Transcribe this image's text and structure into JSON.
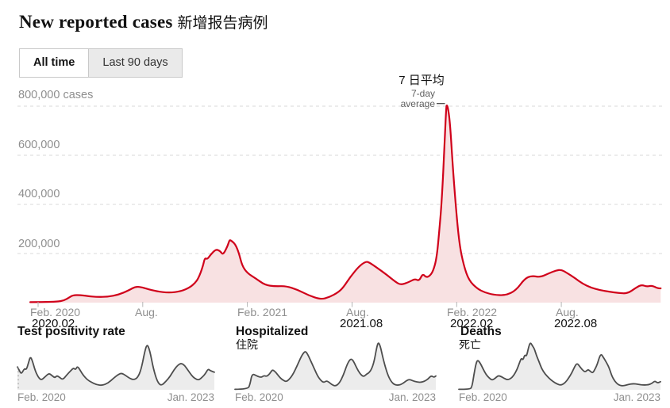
{
  "header": {
    "title_en": "New reported cases",
    "title_zh": "新增报告病例",
    "tabs": [
      {
        "label": "All time",
        "active": true
      },
      {
        "label": "Last 90 days",
        "active": false
      }
    ]
  },
  "annotation": {
    "zh": "7 日平均",
    "en_line1": "7-day",
    "en_line2": "average"
  },
  "colors": {
    "line": "#d0021b",
    "fill": "#f8e1e2",
    "grid": "#dadada",
    "tick": "#b6b6b6",
    "axis_text": "#8f8f8f",
    "dark_text": "#121212",
    "small_line": "#4d4d4d",
    "small_fill": "#ececec"
  },
  "chart_data": [
    {
      "type": "area",
      "name": "new-reported-cases",
      "title": "New reported cases 新增报告病例",
      "series_name": "7-day average",
      "y_unit": "cases",
      "ylim": [
        0,
        850000
      ],
      "grid": "horizontal dashed",
      "legend": "none",
      "y_ticks": [
        {
          "value": 800000,
          "label": "800,000 cases"
        },
        {
          "value": 600000,
          "label": "600,000"
        },
        {
          "value": 400000,
          "label": "400,000"
        },
        {
          "value": 200000,
          "label": "200,000"
        }
      ],
      "x_unit": "months since Feb. 2020",
      "x_ticks": [
        {
          "m": 0,
          "label": "Feb. 2020",
          "label2": "2020.02"
        },
        {
          "m": 6,
          "label": "Aug.",
          "label2": ""
        },
        {
          "m": 12,
          "label": "Feb. 2021",
          "label2": ""
        },
        {
          "m": 18,
          "label": "Aug.",
          "label2": "2021.08"
        },
        {
          "m": 24,
          "label": "Feb. 2022",
          "label2": "2022.02"
        },
        {
          "m": 30,
          "label": "Aug.",
          "label2": "2022.08"
        }
      ],
      "series": [
        {
          "name": "7-day average of new reported cases",
          "points": [
            [
              -0.45,
              2000
            ],
            [
              0.3,
              2500
            ],
            [
              1.1,
              4000
            ],
            [
              1.5,
              9000
            ],
            [
              1.8,
              22000
            ],
            [
              2.0,
              30000
            ],
            [
              2.4,
              31000
            ],
            [
              2.8,
              27000
            ],
            [
              3.4,
              23000
            ],
            [
              4.0,
              24000
            ],
            [
              4.6,
              32000
            ],
            [
              5.2,
              50000
            ],
            [
              5.6,
              66000
            ],
            [
              6.0,
              62000
            ],
            [
              6.3,
              55000
            ],
            [
              6.8,
              46000
            ],
            [
              7.5,
              40000
            ],
            [
              8.2,
              46000
            ],
            [
              8.7,
              62000
            ],
            [
              9.0,
              80000
            ],
            [
              9.2,
              100000
            ],
            [
              9.45,
              148000
            ],
            [
              9.56,
              183000
            ],
            [
              9.7,
              176000
            ],
            [
              9.9,
              196000
            ],
            [
              10.2,
              218000
            ],
            [
              10.45,
              210000
            ],
            [
              10.6,
              194000
            ],
            [
              10.85,
              228000
            ],
            [
              10.95,
              250000
            ],
            [
              11.0,
              255000
            ],
            [
              11.1,
              251000
            ],
            [
              11.3,
              238000
            ],
            [
              11.5,
              205000
            ],
            [
              11.7,
              150000
            ],
            [
              12.0,
              120000
            ],
            [
              12.45,
              100000
            ],
            [
              13.0,
              72000
            ],
            [
              13.6,
              66000
            ],
            [
              14.2,
              68000
            ],
            [
              14.9,
              52000
            ],
            [
              15.5,
              30000
            ],
            [
              16.2,
              13000
            ],
            [
              16.7,
              22000
            ],
            [
              17.2,
              42000
            ],
            [
              17.5,
              62000
            ],
            [
              17.9,
              105000
            ],
            [
              18.4,
              148000
            ],
            [
              18.8,
              168000
            ],
            [
              19.0,
              163000
            ],
            [
              19.4,
              144000
            ],
            [
              20.0,
              113000
            ],
            [
              20.5,
              84000
            ],
            [
              20.8,
              72000
            ],
            [
              21.3,
              85000
            ],
            [
              21.6,
              97000
            ],
            [
              21.85,
              88000
            ],
            [
              22.05,
              118000
            ],
            [
              22.25,
              103000
            ],
            [
              22.45,
              108000
            ],
            [
              22.65,
              128000
            ],
            [
              22.85,
              180000
            ],
            [
              23.0,
              290000
            ],
            [
              23.15,
              420000
            ],
            [
              23.3,
              640000
            ],
            [
              23.4,
              796000
            ],
            [
              23.44,
              806000
            ],
            [
              23.52,
              786000
            ],
            [
              23.62,
              730000
            ],
            [
              23.75,
              580000
            ],
            [
              23.95,
              390000
            ],
            [
              24.15,
              240000
            ],
            [
              24.4,
              152000
            ],
            [
              24.7,
              90000
            ],
            [
              25.2,
              56000
            ],
            [
              25.6,
              42000
            ],
            [
              26.1,
              32000
            ],
            [
              26.8,
              29000
            ],
            [
              27.4,
              50000
            ],
            [
              27.9,
              98000
            ],
            [
              28.3,
              110000
            ],
            [
              28.8,
              103000
            ],
            [
              29.3,
              120000
            ],
            [
              29.7,
              131000
            ],
            [
              30.0,
              134000
            ],
            [
              30.3,
              122000
            ],
            [
              30.8,
              99000
            ],
            [
              31.2,
              78000
            ],
            [
              31.7,
              61000
            ],
            [
              32.2,
              51000
            ],
            [
              32.7,
              45000
            ],
            [
              33.3,
              39000
            ],
            [
              33.8,
              37000
            ],
            [
              34.3,
              62000
            ],
            [
              34.6,
              73000
            ],
            [
              34.9,
              65000
            ],
            [
              35.2,
              70000
            ],
            [
              35.5,
              59000
            ],
            [
              35.7,
              58000
            ]
          ]
        }
      ]
    },
    {
      "type": "area",
      "name": "test-positivity-rate",
      "title": "Test positivity rate",
      "subtitle_zh": "",
      "x_labels": [
        "Feb. 2020",
        "Jan. 2023"
      ],
      "y_normalized": true,
      "starts_with_dotted_gap_marker": true,
      "points": [
        [
          0,
          0.48
        ],
        [
          0.01,
          0.4
        ],
        [
          0.02,
          0.33
        ],
        [
          0.035,
          0.45
        ],
        [
          0.045,
          0.42
        ],
        [
          0.055,
          0.55
        ],
        [
          0.065,
          0.7
        ],
        [
          0.075,
          0.62
        ],
        [
          0.09,
          0.4
        ],
        [
          0.105,
          0.27
        ],
        [
          0.12,
          0.2
        ],
        [
          0.14,
          0.27
        ],
        [
          0.16,
          0.35
        ],
        [
          0.175,
          0.3
        ],
        [
          0.19,
          0.25
        ],
        [
          0.2,
          0.3
        ],
        [
          0.215,
          0.26
        ],
        [
          0.23,
          0.21
        ],
        [
          0.25,
          0.31
        ],
        [
          0.27,
          0.4
        ],
        [
          0.285,
          0.46
        ],
        [
          0.295,
          0.42
        ],
        [
          0.305,
          0.5
        ],
        [
          0.32,
          0.4
        ],
        [
          0.335,
          0.3
        ],
        [
          0.355,
          0.21
        ],
        [
          0.375,
          0.16
        ],
        [
          0.4,
          0.11
        ],
        [
          0.43,
          0.09
        ],
        [
          0.46,
          0.14
        ],
        [
          0.49,
          0.25
        ],
        [
          0.515,
          0.33
        ],
        [
          0.53,
          0.35
        ],
        [
          0.55,
          0.3
        ],
        [
          0.57,
          0.24
        ],
        [
          0.59,
          0.21
        ],
        [
          0.61,
          0.25
        ],
        [
          0.628,
          0.42
        ],
        [
          0.645,
          0.78
        ],
        [
          0.658,
          0.97
        ],
        [
          0.672,
          0.83
        ],
        [
          0.69,
          0.45
        ],
        [
          0.71,
          0.17
        ],
        [
          0.73,
          0.08
        ],
        [
          0.755,
          0.18
        ],
        [
          0.775,
          0.28
        ],
        [
          0.795,
          0.42
        ],
        [
          0.815,
          0.52
        ],
        [
          0.832,
          0.56
        ],
        [
          0.85,
          0.51
        ],
        [
          0.868,
          0.4
        ],
        [
          0.885,
          0.3
        ],
        [
          0.9,
          0.24
        ],
        [
          0.92,
          0.2
        ],
        [
          0.94,
          0.27
        ],
        [
          0.955,
          0.34
        ],
        [
          0.968,
          0.44
        ],
        [
          0.98,
          0.4
        ],
        [
          1,
          0.37
        ]
      ]
    },
    {
      "type": "area",
      "name": "hospitalized",
      "title": "Hospitalized",
      "subtitle_zh": "住院",
      "x_labels": [
        "Feb. 2020",
        "Jan. 2023"
      ],
      "y_normalized": true,
      "points": [
        [
          0,
          0.01
        ],
        [
          0.065,
          0.01
        ],
        [
          0.075,
          0.12
        ],
        [
          0.082,
          0.28
        ],
        [
          0.09,
          0.33
        ],
        [
          0.1,
          0.31
        ],
        [
          0.115,
          0.28
        ],
        [
          0.13,
          0.26
        ],
        [
          0.145,
          0.3
        ],
        [
          0.158,
          0.28
        ],
        [
          0.172,
          0.33
        ],
        [
          0.185,
          0.42
        ],
        [
          0.196,
          0.4
        ],
        [
          0.21,
          0.33
        ],
        [
          0.225,
          0.25
        ],
        [
          0.24,
          0.2
        ],
        [
          0.256,
          0.17
        ],
        [
          0.27,
          0.22
        ],
        [
          0.285,
          0.3
        ],
        [
          0.3,
          0.42
        ],
        [
          0.315,
          0.56
        ],
        [
          0.33,
          0.7
        ],
        [
          0.342,
          0.78
        ],
        [
          0.352,
          0.81
        ],
        [
          0.363,
          0.74
        ],
        [
          0.377,
          0.61
        ],
        [
          0.392,
          0.47
        ],
        [
          0.41,
          0.3
        ],
        [
          0.426,
          0.2
        ],
        [
          0.442,
          0.15
        ],
        [
          0.455,
          0.19
        ],
        [
          0.468,
          0.16
        ],
        [
          0.482,
          0.11
        ],
        [
          0.5,
          0.075
        ],
        [
          0.52,
          0.14
        ],
        [
          0.54,
          0.31
        ],
        [
          0.557,
          0.52
        ],
        [
          0.571,
          0.63
        ],
        [
          0.582,
          0.65
        ],
        [
          0.594,
          0.57
        ],
        [
          0.607,
          0.45
        ],
        [
          0.622,
          0.34
        ],
        [
          0.64,
          0.27
        ],
        [
          0.655,
          0.33
        ],
        [
          0.668,
          0.36
        ],
        [
          0.682,
          0.45
        ],
        [
          0.694,
          0.62
        ],
        [
          0.705,
          0.88
        ],
        [
          0.713,
          1.0
        ],
        [
          0.722,
          0.94
        ],
        [
          0.733,
          0.74
        ],
        [
          0.747,
          0.5
        ],
        [
          0.762,
          0.3
        ],
        [
          0.778,
          0.17
        ],
        [
          0.795,
          0.105
        ],
        [
          0.815,
          0.095
        ],
        [
          0.835,
          0.13
        ],
        [
          0.853,
          0.19
        ],
        [
          0.868,
          0.22
        ],
        [
          0.885,
          0.19
        ],
        [
          0.905,
          0.165
        ],
        [
          0.925,
          0.155
        ],
        [
          0.945,
          0.18
        ],
        [
          0.962,
          0.23
        ],
        [
          0.977,
          0.3
        ],
        [
          0.99,
          0.26
        ],
        [
          1,
          0.29
        ]
      ]
    },
    {
      "type": "area",
      "name": "deaths",
      "title": "Deaths",
      "subtitle_zh": "死亡",
      "x_labels": [
        "Feb. 2020",
        "Jan. 2023"
      ],
      "y_normalized": true,
      "points": [
        [
          0,
          0.01
        ],
        [
          0.055,
          0.01
        ],
        [
          0.065,
          0.06
        ],
        [
          0.075,
          0.32
        ],
        [
          0.085,
          0.55
        ],
        [
          0.093,
          0.63
        ],
        [
          0.105,
          0.57
        ],
        [
          0.12,
          0.44
        ],
        [
          0.135,
          0.32
        ],
        [
          0.15,
          0.25
        ],
        [
          0.165,
          0.2
        ],
        [
          0.18,
          0.24
        ],
        [
          0.195,
          0.3
        ],
        [
          0.21,
          0.28
        ],
        [
          0.225,
          0.24
        ],
        [
          0.24,
          0.21
        ],
        [
          0.256,
          0.23
        ],
        [
          0.272,
          0.3
        ],
        [
          0.288,
          0.42
        ],
        [
          0.3,
          0.56
        ],
        [
          0.31,
          0.67
        ],
        [
          0.318,
          0.62
        ],
        [
          0.327,
          0.74
        ],
        [
          0.336,
          0.7
        ],
        [
          0.346,
          0.9
        ],
        [
          0.355,
          1.0
        ],
        [
          0.364,
          0.93
        ],
        [
          0.374,
          0.87
        ],
        [
          0.385,
          0.72
        ],
        [
          0.397,
          0.6
        ],
        [
          0.41,
          0.45
        ],
        [
          0.428,
          0.33
        ],
        [
          0.448,
          0.24
        ],
        [
          0.468,
          0.17
        ],
        [
          0.488,
          0.12
        ],
        [
          0.508,
          0.095
        ],
        [
          0.528,
          0.15
        ],
        [
          0.545,
          0.25
        ],
        [
          0.56,
          0.35
        ],
        [
          0.575,
          0.49
        ],
        [
          0.586,
          0.56
        ],
        [
          0.598,
          0.5
        ],
        [
          0.612,
          0.42
        ],
        [
          0.627,
          0.37
        ],
        [
          0.64,
          0.43
        ],
        [
          0.652,
          0.39
        ],
        [
          0.664,
          0.35
        ],
        [
          0.676,
          0.44
        ],
        [
          0.687,
          0.54
        ],
        [
          0.698,
          0.7
        ],
        [
          0.707,
          0.75
        ],
        [
          0.717,
          0.68
        ],
        [
          0.73,
          0.59
        ],
        [
          0.744,
          0.48
        ],
        [
          0.758,
          0.3
        ],
        [
          0.773,
          0.18
        ],
        [
          0.792,
          0.1
        ],
        [
          0.815,
          0.08
        ],
        [
          0.84,
          0.11
        ],
        [
          0.865,
          0.13
        ],
        [
          0.89,
          0.115
        ],
        [
          0.915,
          0.1
        ],
        [
          0.94,
          0.105
        ],
        [
          0.957,
          0.13
        ],
        [
          0.972,
          0.19
        ],
        [
          0.985,
          0.14
        ],
        [
          1,
          0.17
        ]
      ]
    }
  ]
}
